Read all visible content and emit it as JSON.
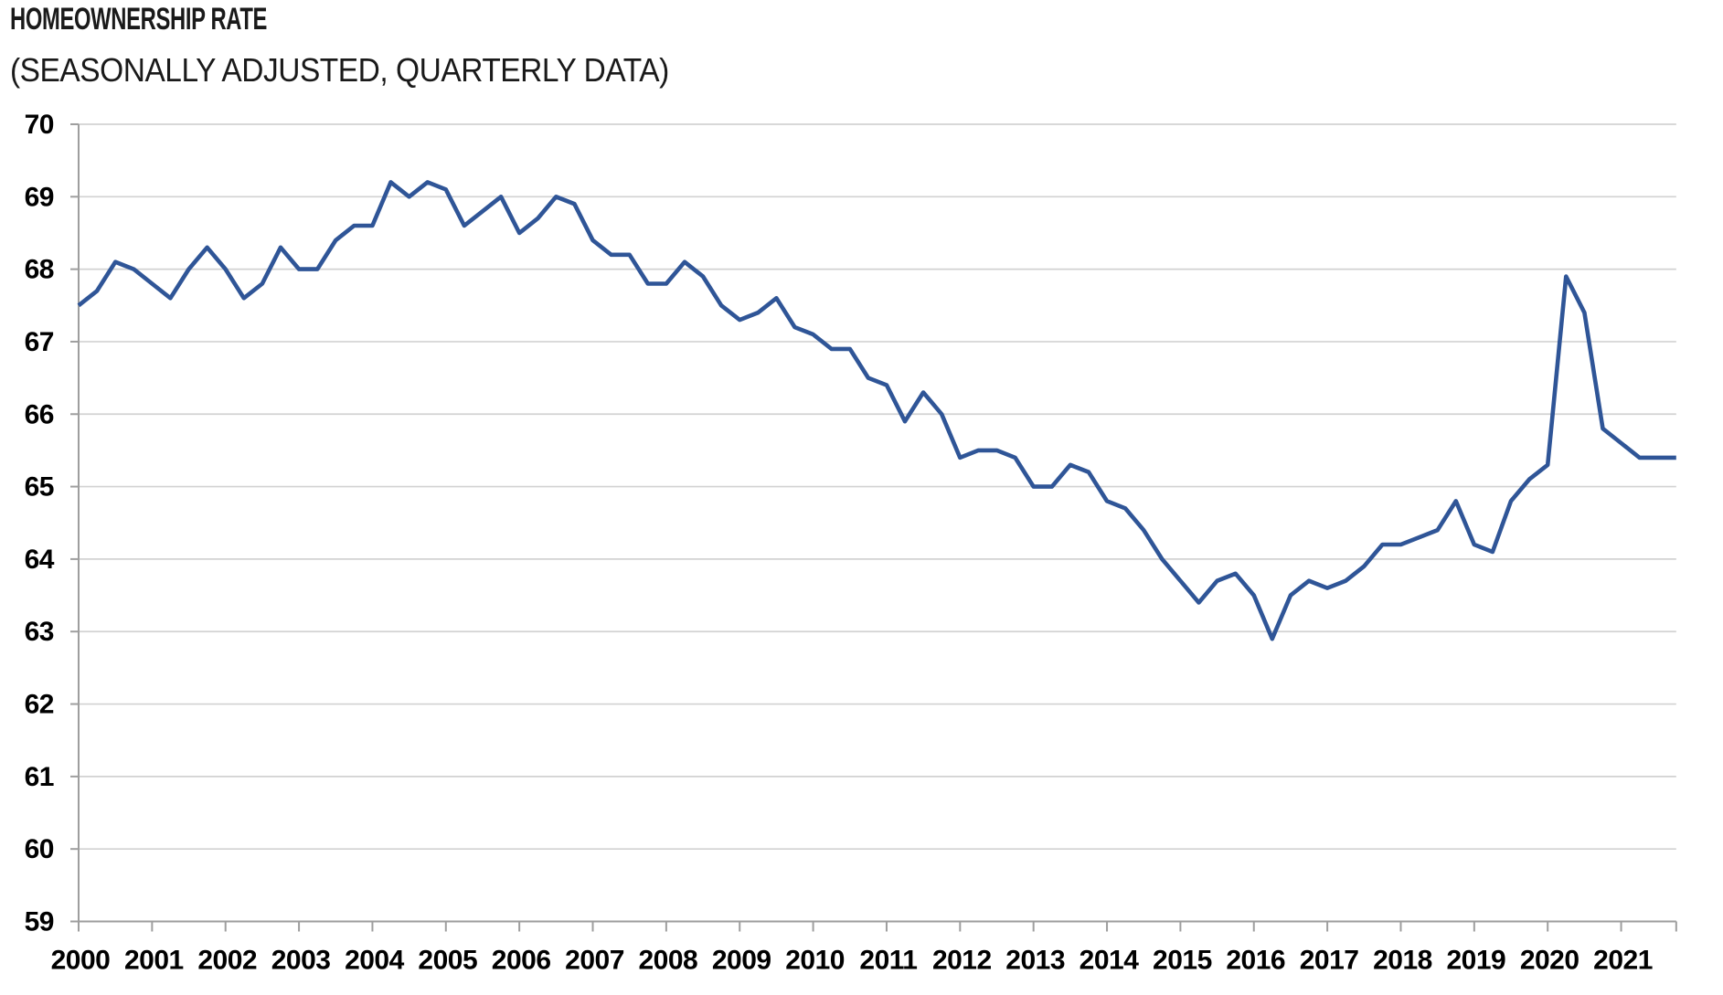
{
  "header": {
    "title": "HOMEOWNERSHIP RATE",
    "subtitle": "(SEASONALLY ADJUSTED, QUARTERLY DATA)"
  },
  "chart_data": {
    "type": "line",
    "title": "HOMEOWNERSHIP RATE",
    "subtitle": "(SEASONALLY ADJUSTED, QUARTERLY DATA)",
    "series_name": "Homeownership rate (%)",
    "x_start_year": 2000,
    "points_per_year": 4,
    "frequency": "quarterly",
    "ylim": [
      59,
      70
    ],
    "grid": true,
    "legend_position": "none",
    "line_color": "#2F5597",
    "grid_color": "#D2D2D2",
    "axis_color": "#9E9E9E",
    "label_color": "#000000",
    "y_tick_labels": [
      "70",
      "69",
      "68",
      "67",
      "66",
      "65",
      "64",
      "63",
      "62",
      "61",
      "60",
      "59"
    ],
    "x_tick_labels": [
      "2000",
      "2001",
      "2002",
      "2003",
      "2004",
      "2005",
      "2006",
      "2007",
      "2008",
      "2009",
      "2010",
      "2011",
      "2012",
      "2013",
      "2014",
      "2015",
      "2016",
      "2017",
      "2018",
      "2019",
      "2020",
      "2021"
    ],
    "values": [
      67.5,
      67.7,
      68.1,
      68.0,
      67.8,
      67.6,
      68.0,
      68.3,
      68.0,
      67.6,
      67.8,
      68.3,
      68.0,
      68.0,
      68.4,
      68.6,
      68.6,
      69.2,
      69.0,
      69.2,
      69.1,
      68.6,
      68.8,
      69.0,
      68.5,
      68.7,
      69.0,
      68.9,
      68.4,
      68.2,
      68.2,
      67.8,
      67.8,
      68.1,
      67.9,
      67.5,
      67.3,
      67.4,
      67.6,
      67.2,
      67.1,
      66.9,
      66.9,
      66.5,
      66.4,
      65.9,
      66.3,
      66.0,
      65.4,
      65.5,
      65.5,
      65.4,
      65.0,
      65.0,
      65.3,
      65.2,
      64.8,
      64.7,
      64.4,
      64.0,
      63.7,
      63.4,
      63.7,
      63.8,
      63.5,
      62.9,
      63.5,
      63.7,
      63.6,
      63.7,
      63.9,
      64.2,
      64.2,
      64.3,
      64.4,
      64.8,
      64.2,
      64.1,
      64.8,
      65.1,
      65.3,
      67.9,
      67.4,
      65.8,
      65.6,
      65.4,
      65.4,
      65.4
    ]
  }
}
